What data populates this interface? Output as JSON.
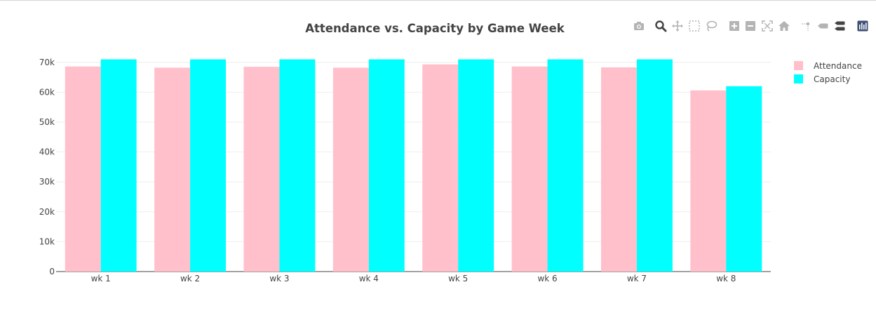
{
  "chart_data": {
    "type": "bar",
    "title": "Attendance vs. Capacity by Game Week",
    "xlabel": "",
    "ylabel": "",
    "categories": [
      "wk 1",
      "wk 2",
      "wk 3",
      "wk 4",
      "wk 5",
      "wk 6",
      "wk 7",
      "wk 8"
    ],
    "series": [
      {
        "name": "Attendance",
        "color": "#ffc0cb",
        "values": [
          68600,
          68200,
          68500,
          68200,
          69300,
          68600,
          68300,
          60600
        ]
      },
      {
        "name": "Capacity",
        "color": "#00ffff",
        "values": [
          71000,
          71000,
          71000,
          71000,
          71000,
          71000,
          71000,
          62000
        ]
      }
    ],
    "ylim": [
      0,
      73000
    ],
    "yticks": [
      0,
      10000,
      20000,
      30000,
      40000,
      50000,
      60000,
      70000
    ],
    "ytick_labels": [
      "0",
      "10k",
      "20k",
      "30k",
      "40k",
      "50k",
      "60k",
      "70k"
    ],
    "grid": true,
    "legend_position": "top-right"
  },
  "modebar": {
    "icons": [
      "camera-icon",
      "zoom-icon",
      "pan-icon",
      "box-select-icon",
      "lasso-icon",
      "zoom-in-icon",
      "zoom-out-icon",
      "autoscale-icon",
      "reset-axes-icon",
      "spike-lines-icon",
      "hover-closest-icon",
      "hover-compare-icon",
      "plotly-logo-icon"
    ]
  }
}
